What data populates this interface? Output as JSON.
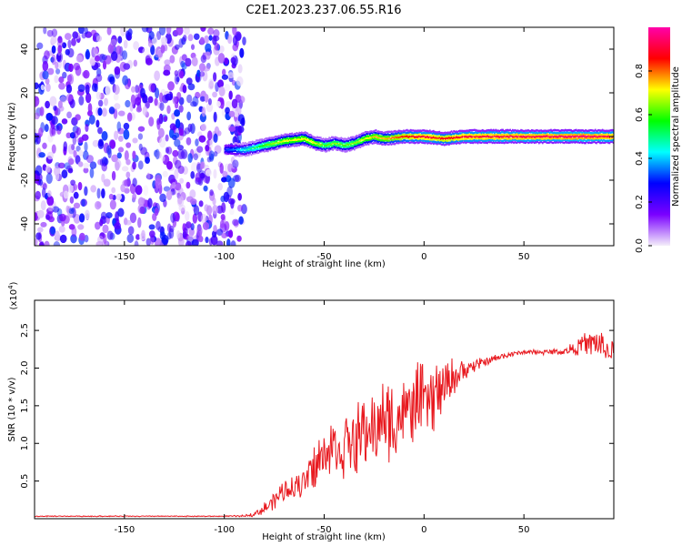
{
  "page_title": "C2E1.2023.237.06.55.R16",
  "chart_data": [
    {
      "type": "heatmap",
      "title": "C2E1.2023.237.06.55.R16",
      "xlabel": "Height of straight line (km)",
      "ylabel": "Frequency (Hz)",
      "xlim": [
        -195,
        95
      ],
      "ylim": [
        -50,
        50
      ],
      "x_ticks": [
        -150,
        -100,
        -50,
        0,
        50
      ],
      "y_ticks": [
        -40,
        -20,
        0,
        20,
        40
      ],
      "colorbar": {
        "label": "Normalized spectral amplitude",
        "range": [
          0.0,
          1.0
        ],
        "ticks": [
          0.0,
          0.2,
          0.4,
          0.6,
          0.8
        ],
        "colors": [
          "#f4eefa",
          "#7a00ff",
          "#0000ff",
          "#00ffff",
          "#00ff00",
          "#ffff00",
          "#ff0000",
          "#ff00aa"
        ]
      },
      "signal_band": {
        "x": [
          -100,
          -90,
          -80,
          -70,
          -60,
          -55,
          -50,
          -45,
          -40,
          -35,
          -30,
          -25,
          -20,
          -10,
          0,
          10,
          20,
          40,
          60,
          80,
          95
        ],
        "center": [
          -6,
          -6,
          -4,
          -2,
          -1,
          -3,
          -4,
          -3,
          -4,
          -3,
          -1,
          0,
          -1,
          0,
          0,
          -1,
          0,
          0,
          0,
          0,
          0
        ],
        "peak": [
          0.3,
          0.45,
          0.6,
          0.7,
          0.72,
          0.7,
          0.6,
          0.65,
          0.6,
          0.65,
          0.7,
          0.75,
          0.75,
          0.85,
          0.9,
          0.85,
          0.9,
          0.92,
          0.92,
          0.95,
          0.9
        ]
      },
      "noise_region": {
        "x_from": -195,
        "x_to": -90,
        "level": 0.2
      }
    },
    {
      "type": "line",
      "title": "",
      "xlabel": "Height of straight line (km)",
      "ylabel": "SNR (10 * v/v)",
      "y_multiplier": "(x10",
      "y_multiplier_exp": "4",
      "y_multiplier_close": ")",
      "xlim": [
        -195,
        95
      ],
      "ylim": [
        0,
        2.9
      ],
      "x_ticks": [
        -150,
        -100,
        -50,
        0,
        50
      ],
      "y_ticks": [
        0.5,
        1.0,
        1.5,
        2.0,
        2.5
      ],
      "y_tick_labels": [
        "0.5",
        "1.0",
        "1.5",
        "2.0",
        "2.5"
      ],
      "series": [
        {
          "color": "#e8191f",
          "x": [
            -195,
            -150,
            -120,
            -100,
            -90,
            -85,
            -80,
            -75,
            -70,
            -65,
            -60,
            -55,
            -50,
            -45,
            -40,
            -35,
            -30,
            -25,
            -20,
            -15,
            -10,
            -5,
            0,
            5,
            10,
            15,
            20,
            30,
            40,
            50,
            60,
            70,
            80,
            85,
            90,
            95
          ],
          "y": [
            0.03,
            0.03,
            0.03,
            0.03,
            0.03,
            0.05,
            0.1,
            0.2,
            0.3,
            0.35,
            0.4,
            0.55,
            0.7,
            0.75,
            0.8,
            0.85,
            0.95,
            1.0,
            1.05,
            1.1,
            1.2,
            1.3,
            1.4,
            1.45,
            1.6,
            1.8,
            1.9,
            2.05,
            2.15,
            2.2,
            2.2,
            2.2,
            2.25,
            2.25,
            2.2,
            2.1
          ],
          "amp": [
            0.01,
            0.01,
            0.01,
            0.01,
            0.02,
            0.05,
            0.12,
            0.2,
            0.25,
            0.25,
            0.35,
            0.55,
            0.6,
            0.65,
            0.7,
            0.7,
            0.75,
            0.8,
            0.85,
            0.85,
            0.8,
            0.8,
            0.75,
            0.7,
            0.55,
            0.4,
            0.25,
            0.1,
            0.06,
            0.05,
            0.05,
            0.08,
            0.25,
            0.3,
            0.3,
            0.3
          ]
        }
      ]
    }
  ]
}
